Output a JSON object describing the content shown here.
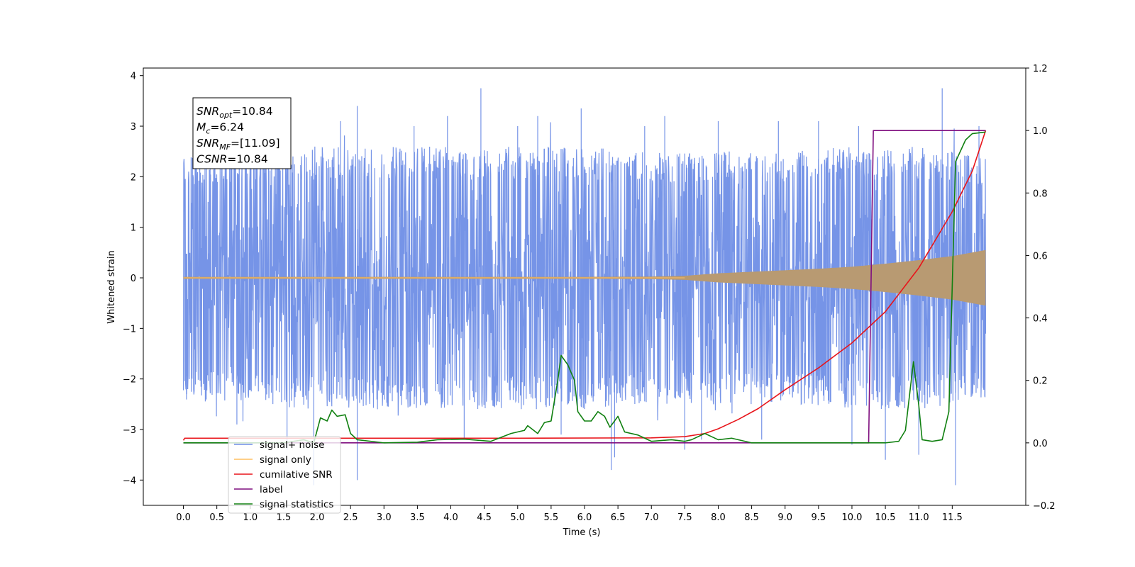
{
  "chart_data": {
    "type": "line",
    "xlabel": "Time (s)",
    "ylabel": "Whitened strain",
    "xlim": [
      -0.6,
      12.6
    ],
    "ylim_left": [
      -4.5,
      4.15
    ],
    "ylim_right": [
      -0.2,
      1.2
    ],
    "x_ticks": [
      0.0,
      0.5,
      1.0,
      1.5,
      2.0,
      2.5,
      3.0,
      3.5,
      4.0,
      4.5,
      5.0,
      5.5,
      6.0,
      6.5,
      7.0,
      7.5,
      8.0,
      8.5,
      9.0,
      9.5,
      10.0,
      10.5,
      11.0,
      11.5
    ],
    "x_tick_labels": [
      "0.0",
      "0.5",
      "1.0",
      "1.5",
      "2.0",
      "2.5",
      "3.0",
      "3.5",
      "4.0",
      "4.5",
      "5.0",
      "5.5",
      "6.0",
      "6.5",
      "7.0",
      "7.5",
      "8.0",
      "8.5",
      "9.0",
      "9.5",
      "10.0",
      "10.5",
      "11.0",
      "11.5"
    ],
    "y_left_ticks": [
      4,
      3,
      2,
      1,
      0,
      -1,
      -2,
      -3,
      -4
    ],
    "y_left_tick_labels": [
      "4",
      "3",
      "2",
      "1",
      "0",
      "−1",
      "−2",
      "−3",
      "−4"
    ],
    "y_right_ticks": [
      1.2,
      1.0,
      0.8,
      0.6,
      0.4,
      0.2,
      0.0,
      -0.2
    ],
    "y_right_tick_labels": [
      "1.2",
      "1.0",
      "0.8",
      "0.6",
      "0.4",
      "0.2",
      "0.0",
      "−0.2"
    ],
    "grid": false,
    "legend_position": "lower-left",
    "series": [
      {
        "name": "signal+ noise",
        "axis": "left",
        "color": "#6f8ee6",
        "style": "dense-noise",
        "x_range": [
          0.0,
          12.0
        ],
        "envelope": [
          [
            0.0,
            2.4
          ],
          [
            0.5,
            2.5
          ],
          [
            1.0,
            2.5
          ],
          [
            2.0,
            2.6
          ],
          [
            3.0,
            2.6
          ],
          [
            4.0,
            2.6
          ],
          [
            5.0,
            2.6
          ],
          [
            6.0,
            2.6
          ],
          [
            7.0,
            2.5
          ],
          [
            8.0,
            2.5
          ],
          [
            9.0,
            2.5
          ],
          [
            10.0,
            2.6
          ],
          [
            11.0,
            2.6
          ],
          [
            12.0,
            2.4
          ]
        ],
        "spikes": [
          [
            0.05,
            -2.3
          ],
          [
            0.4,
            2.7
          ],
          [
            0.8,
            -2.9
          ],
          [
            1.2,
            3.0
          ],
          [
            1.55,
            -3.4
          ],
          [
            1.95,
            -4.1
          ],
          [
            2.35,
            3.1
          ],
          [
            2.6,
            -4.0
          ],
          [
            2.6,
            3.4
          ],
          [
            3.45,
            3.0
          ],
          [
            3.95,
            3.2
          ],
          [
            4.2,
            -3.2
          ],
          [
            4.45,
            3.75
          ],
          [
            5.0,
            3.0
          ],
          [
            5.3,
            3.2
          ],
          [
            5.65,
            -3.1
          ],
          [
            5.95,
            3.35
          ],
          [
            6.4,
            -3.8
          ],
          [
            6.45,
            -3.55
          ],
          [
            6.9,
            3.0
          ],
          [
            7.2,
            3.2
          ],
          [
            7.5,
            -3.4
          ],
          [
            7.75,
            -3.2
          ],
          [
            8.0,
            3.1
          ],
          [
            8.65,
            -3.2
          ],
          [
            8.9,
            3.1
          ],
          [
            9.5,
            3.1
          ],
          [
            10.0,
            -3.3
          ],
          [
            10.1,
            3.0
          ],
          [
            10.3,
            -2.3
          ],
          [
            10.5,
            -3.6
          ],
          [
            11.0,
            -3.5
          ],
          [
            11.35,
            3.75
          ],
          [
            11.55,
            -4.1
          ],
          [
            11.9,
            3.0
          ]
        ]
      },
      {
        "name": "signal only",
        "axis": "left",
        "color": "#ffbf60",
        "style": "chirp",
        "points": [
          [
            0.0,
            0.02
          ],
          [
            3.0,
            0.02
          ],
          [
            6.0,
            0.02
          ],
          [
            7.0,
            0.025
          ],
          [
            7.5,
            0.04
          ],
          [
            8.0,
            0.09
          ],
          [
            8.5,
            0.12
          ],
          [
            9.0,
            0.15
          ],
          [
            9.5,
            0.18
          ],
          [
            10.0,
            0.22
          ],
          [
            10.5,
            0.28
          ],
          [
            11.0,
            0.35
          ],
          [
            11.5,
            0.43
          ],
          [
            12.0,
            0.55
          ]
        ]
      },
      {
        "name": "cumilative SNR",
        "axis": "right",
        "color": "#e8141a",
        "style": "line",
        "points": [
          [
            0.0,
            0.008
          ],
          [
            0.02,
            0.015
          ],
          [
            1.0,
            0.015
          ],
          [
            3.0,
            0.015
          ],
          [
            5.0,
            0.015
          ],
          [
            7.0,
            0.016
          ],
          [
            7.5,
            0.02
          ],
          [
            7.8,
            0.03
          ],
          [
            8.0,
            0.045
          ],
          [
            8.3,
            0.075
          ],
          [
            8.6,
            0.11
          ],
          [
            9.0,
            0.17
          ],
          [
            9.5,
            0.24
          ],
          [
            10.0,
            0.32
          ],
          [
            10.5,
            0.42
          ],
          [
            11.0,
            0.56
          ],
          [
            11.5,
            0.74
          ],
          [
            11.8,
            0.87
          ],
          [
            12.0,
            1.0
          ]
        ]
      },
      {
        "name": "label",
        "axis": "right",
        "color": "#7f0f7f",
        "style": "line",
        "points": [
          [
            0.0,
            0.0
          ],
          [
            10.25,
            0.0
          ],
          [
            10.32,
            1.0
          ],
          [
            12.0,
            1.0
          ]
        ]
      },
      {
        "name": "signal statistics",
        "axis": "right",
        "color": "#108010",
        "style": "line",
        "points": [
          [
            0.0,
            0.0
          ],
          [
            0.5,
            0.0
          ],
          [
            1.0,
            0.0
          ],
          [
            1.5,
            0.0
          ],
          [
            1.8,
            0.01
          ],
          [
            1.95,
            0.0
          ],
          [
            2.05,
            0.08
          ],
          [
            2.15,
            0.07
          ],
          [
            2.22,
            0.105
          ],
          [
            2.3,
            0.085
          ],
          [
            2.42,
            0.09
          ],
          [
            2.5,
            0.03
          ],
          [
            2.6,
            0.01
          ],
          [
            3.0,
            0.0
          ],
          [
            3.5,
            0.002
          ],
          [
            3.8,
            0.01
          ],
          [
            4.2,
            0.012
          ],
          [
            4.6,
            0.005
          ],
          [
            4.9,
            0.03
          ],
          [
            5.1,
            0.04
          ],
          [
            5.15,
            0.055
          ],
          [
            5.3,
            0.03
          ],
          [
            5.4,
            0.065
          ],
          [
            5.5,
            0.07
          ],
          [
            5.6,
            0.2
          ],
          [
            5.65,
            0.28
          ],
          [
            5.75,
            0.25
          ],
          [
            5.85,
            0.2
          ],
          [
            5.9,
            0.1
          ],
          [
            6.0,
            0.07
          ],
          [
            6.1,
            0.07
          ],
          [
            6.2,
            0.1
          ],
          [
            6.3,
            0.085
          ],
          [
            6.38,
            0.05
          ],
          [
            6.5,
            0.085
          ],
          [
            6.6,
            0.035
          ],
          [
            6.8,
            0.025
          ],
          [
            7.0,
            0.005
          ],
          [
            7.3,
            0.01
          ],
          [
            7.5,
            0.005
          ],
          [
            7.6,
            0.01
          ],
          [
            7.8,
            0.03
          ],
          [
            7.9,
            0.02
          ],
          [
            8.0,
            0.01
          ],
          [
            8.2,
            0.015
          ],
          [
            8.5,
            0.0
          ],
          [
            9.0,
            0.0
          ],
          [
            9.5,
            0.0
          ],
          [
            10.0,
            0.0
          ],
          [
            10.5,
            0.0
          ],
          [
            10.7,
            0.005
          ],
          [
            10.8,
            0.04
          ],
          [
            10.92,
            0.26
          ],
          [
            11.0,
            0.12
          ],
          [
            11.05,
            0.01
          ],
          [
            11.2,
            0.005
          ],
          [
            11.35,
            0.01
          ],
          [
            11.45,
            0.1
          ],
          [
            11.55,
            0.9
          ],
          [
            11.7,
            0.97
          ],
          [
            11.8,
            0.99
          ],
          [
            12.0,
            0.995
          ]
        ]
      }
    ],
    "legend": [
      {
        "label": "signal+ noise",
        "color": "#6f8ee6"
      },
      {
        "label": "signal only",
        "color": "#ffbf60"
      },
      {
        "label": "cumilative SNR",
        "color": "#e8141a"
      },
      {
        "label": "label",
        "color": "#7f0f7f"
      },
      {
        "label": "signal statistics",
        "color": "#108010"
      }
    ],
    "annotations": [
      {
        "base": "SNR",
        "sub": "opt",
        "value": "=10.84"
      },
      {
        "base": "M",
        "sub": "c",
        "value": "=6.24"
      },
      {
        "base": "SNR",
        "sub": "MF",
        "value": "=[11.09]"
      },
      {
        "base": "CSNR",
        "sub": "",
        "value": "=10.84"
      }
    ]
  }
}
